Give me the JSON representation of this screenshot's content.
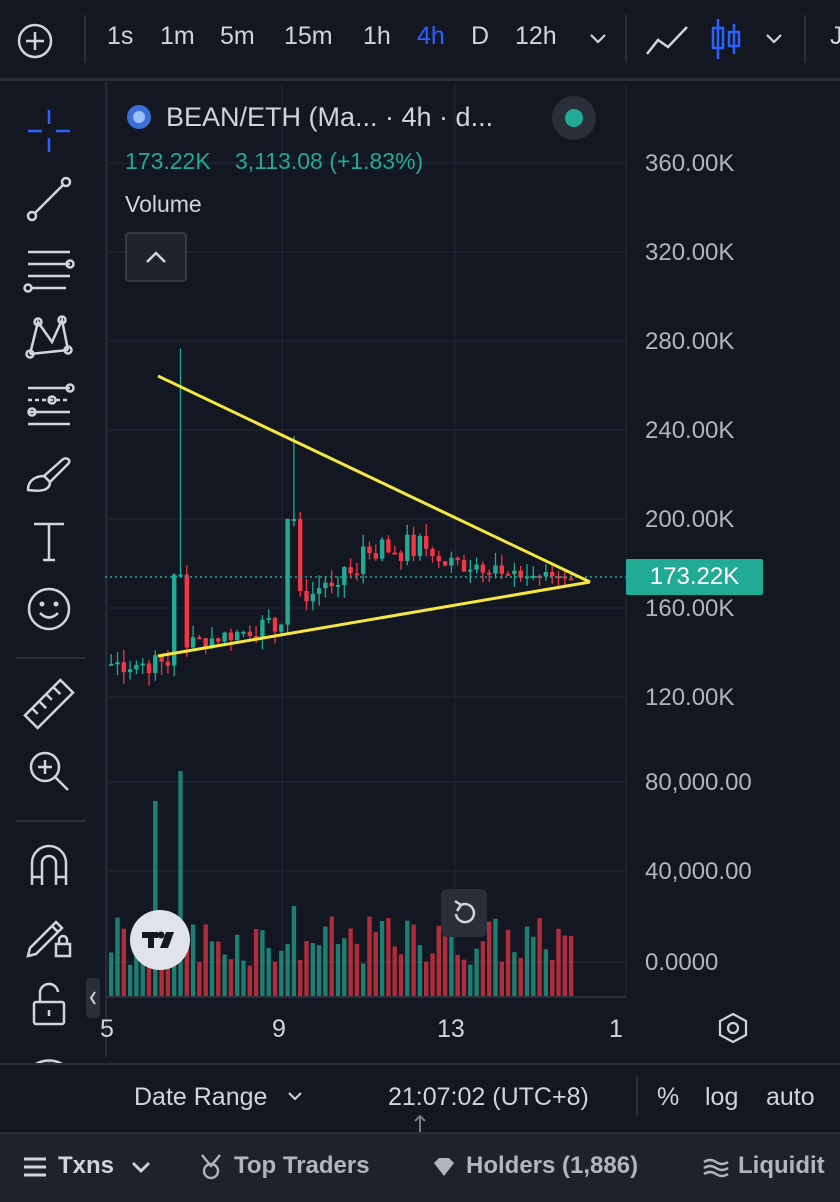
{
  "toolbar": {
    "timeframes": [
      "1s",
      "1m",
      "5m",
      "15m",
      "1h",
      "4h",
      "D",
      "12h"
    ],
    "active_timeframe": "4h",
    "right_partial": "J"
  },
  "legend": {
    "symbol": "BEAN/ETH (Ma... · 4h · d...",
    "price": "173.22K",
    "change": "3,113.08 (+1.83%)",
    "volume_label": "Volume"
  },
  "price_axis": {
    "labels": [
      "360.00K",
      "320.00K",
      "280.00K",
      "240.00K",
      "200.00K",
      "160.00K",
      "120.00K",
      "80,000.00",
      "40,000.00",
      "0.0000"
    ],
    "last_price": "173.22K"
  },
  "time_axis": {
    "labels": [
      "5",
      "9",
      "13",
      "1"
    ]
  },
  "bottom": {
    "date_range": "Date Range",
    "clock": "21:07:02 (UTC+8)",
    "percent": "%",
    "log": "log",
    "auto": "auto"
  },
  "footer": {
    "txns": "Txns",
    "top_traders": "Top Traders",
    "holders": "Holders (1,886)",
    "liquidity": "Liquidit"
  },
  "colors": {
    "up": "#22ab94",
    "down": "#f23645",
    "trendline": "#f5e642",
    "accent": "#2962ff",
    "background": "#131722"
  }
}
